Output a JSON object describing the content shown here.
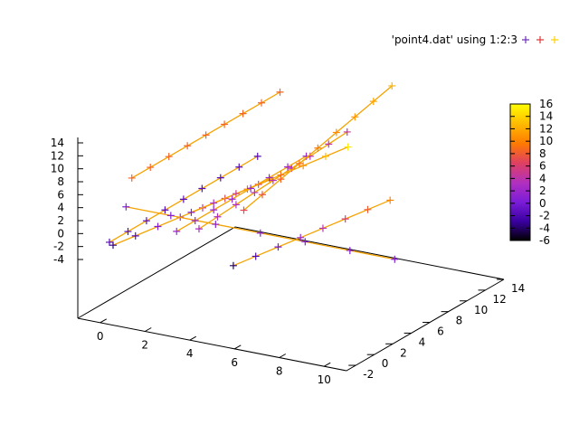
{
  "chart_data": {
    "type": "scatter",
    "title": "",
    "legend": {
      "placement": "top-right",
      "entries": [
        {
          "label": "'point4.dat' using 1:2:3",
          "marker": "+",
          "colors": [
            "#7030c0",
            "#e03a3a",
            "#ffd000"
          ]
        }
      ]
    },
    "axes": {
      "x": {
        "label": "",
        "range": [
          -1,
          11
        ],
        "ticks": [
          0,
          2,
          4,
          6,
          8,
          10
        ]
      },
      "y": {
        "label": "",
        "range": [
          -3,
          14
        ],
        "ticks": [
          -2,
          0,
          2,
          4,
          6,
          8,
          10,
          12,
          14
        ]
      },
      "z": {
        "label": "",
        "range": [
          -4,
          14
        ],
        "ticks": [
          -4,
          -2,
          0,
          2,
          4,
          6,
          8,
          10,
          12,
          14
        ]
      }
    },
    "colorbar": {
      "range": [
        -6,
        16
      ],
      "ticks": [
        -6,
        -4,
        -2,
        0,
        2,
        4,
        6,
        8,
        10,
        12,
        14,
        16
      ],
      "palette": [
        "#000000",
        "#3a00a0",
        "#7a1cd8",
        "#b030c0",
        "#e04060",
        "#ff7a00",
        "#ffb800",
        "#ffff00"
      ]
    },
    "grid": false,
    "series": [
      {
        "x": [
          -0.5,
          0.5,
          1.5,
          2.5,
          3.5,
          4.5,
          5.5,
          6.5
        ],
        "y": [
          -0.4,
          -0.4,
          -0.4,
          -0.4,
          -0.4,
          -0.4,
          -0.4,
          -0.4
        ],
        "z": [
          -3.5,
          -1.5,
          0.5,
          2.5,
          4.5,
          6.5,
          8.5,
          10.5
        ]
      },
      {
        "x": [
          1.0,
          1.0,
          1.0,
          1.0,
          1.0,
          1.0,
          1.0,
          1.0,
          1.0
        ],
        "y": [
          -2.0,
          0.0,
          2.0,
          4.0,
          6.0,
          8.0,
          10.0,
          12.0,
          14.0
        ],
        "z": [
          8.5,
          8.5,
          8.5,
          8.5,
          8.5,
          8.5,
          8.5,
          8.5,
          8.5
        ]
      },
      {
        "x": [
          -0.5,
          1.5,
          3.5,
          5.5,
          7.5,
          9.5,
          11.5
        ],
        "y": [
          1.0,
          1.0,
          1.0,
          1.0,
          1.0,
          1.0,
          1.0
        ],
        "z": [
          1.0,
          1.0,
          1.0,
          1.0,
          1.0,
          1.0,
          1.0
        ]
      },
      {
        "x": [
          4.0,
          4.0,
          4.0,
          4.0,
          4.0,
          4.0,
          4.0,
          4.0,
          4.0
        ],
        "y": [
          -2.0,
          0.0,
          2.0,
          4.0,
          6.0,
          8.0,
          10.0,
          12.0,
          14.0
        ],
        "z": [
          3.0,
          3.2,
          3.4,
          3.6,
          3.8,
          4.0,
          4.2,
          4.4,
          4.6
        ]
      },
      {
        "x": [
          2.0,
          3.0,
          4.0,
          5.0,
          6.0,
          7.0,
          8.0,
          9.0
        ],
        "y": [
          2.0,
          2.0,
          2.0,
          2.0,
          2.0,
          2.0,
          2.0,
          2.0
        ],
        "z": [
          1.0,
          3.0,
          5.0,
          7.0,
          9.0,
          11.0,
          13.0,
          15.0
        ]
      },
      {
        "x": [
          3.0,
          3.0,
          3.0,
          3.0,
          3.0,
          3.0,
          3.0,
          3.0
        ],
        "y": [
          -2.0,
          0.0,
          2.0,
          4.0,
          6.0,
          8.0,
          10.0,
          12.0
        ],
        "z": [
          2.0,
          2.0,
          2.0,
          2.0,
          2.0,
          2.0,
          2.0,
          2.0
        ]
      },
      {
        "x": [
          6.0,
          6.0,
          6.0,
          6.0,
          6.0,
          6.0,
          6.0,
          6.0,
          6.0
        ],
        "y": [
          -2.0,
          0.0,
          2.0,
          4.0,
          6.0,
          8.0,
          10.0,
          12.0,
          14.0
        ],
        "z": [
          7.0,
          7.7,
          8.4,
          9.1,
          9.8,
          10.5,
          11.2,
          11.9,
          12.6
        ]
      },
      {
        "x": [
          4.5,
          5.5,
          6.5,
          7.5,
          8.5,
          9.5,
          10.5,
          11.5
        ],
        "y": [
          0.5,
          0.5,
          0.5,
          0.5,
          0.5,
          0.5,
          0.5,
          0.5
        ],
        "z": [
          -4.0,
          -2.0,
          0.0,
          2.0,
          4.0,
          6.0,
          8.0,
          10.0
        ]
      },
      {
        "x": [
          0.0,
          0.0,
          0.0,
          0.0,
          0.0,
          0.0,
          0.0,
          0.0,
          0.0
        ],
        "y": [
          -2.0,
          0.0,
          2.0,
          4.0,
          6.0,
          8.0,
          10.0,
          12.0,
          14.0
        ],
        "z": [
          -1.5,
          -1.5,
          -1.5,
          -1.5,
          -1.5,
          -1.5,
          -1.5,
          -1.5,
          -1.5
        ]
      }
    ]
  }
}
